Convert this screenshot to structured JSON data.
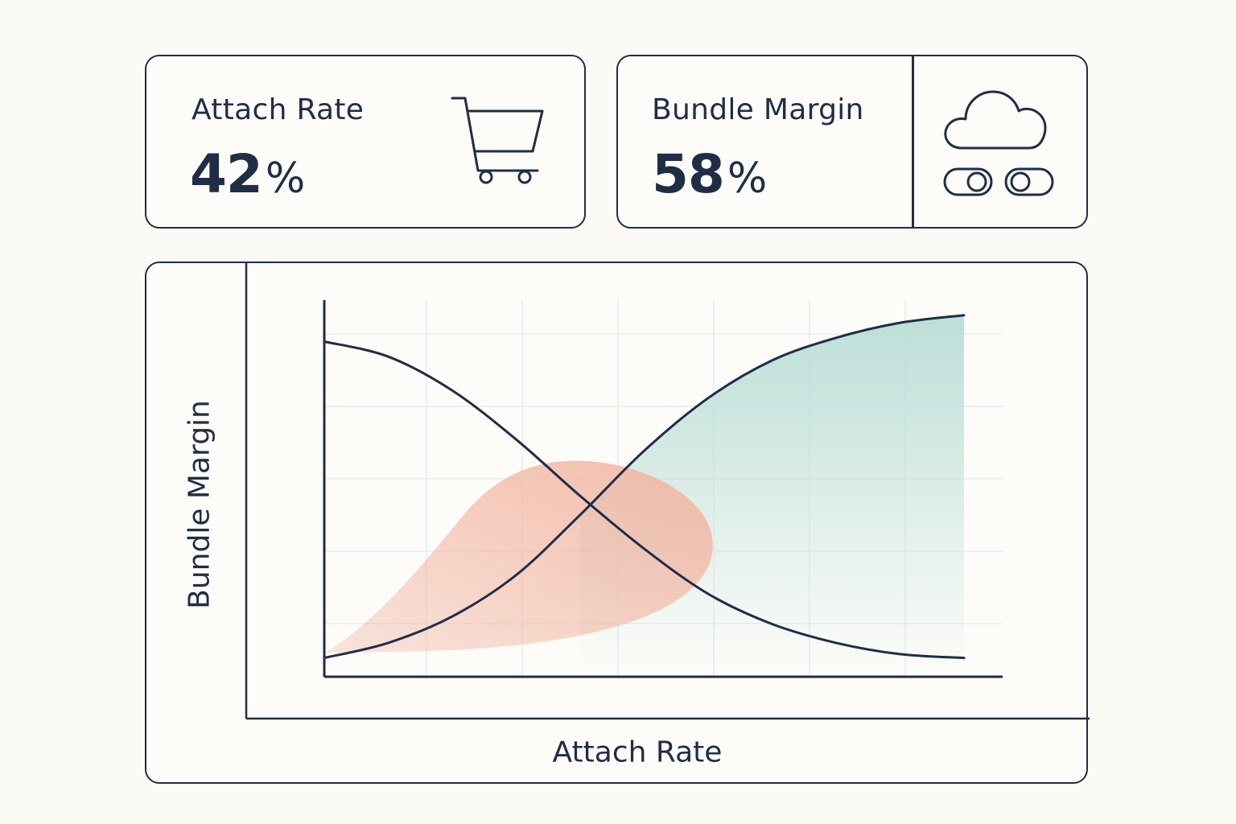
{
  "kpis": {
    "attach_rate": {
      "label": "Attach Rate",
      "value": "42",
      "unit": "%",
      "icon": "shopping-cart-icon"
    },
    "bundle_margin": {
      "label": "Bundle Margin",
      "value": "58",
      "unit": "%",
      "icons": [
        "cloud-icon",
        "toggle-icon",
        "toggle-icon"
      ]
    }
  },
  "colors": {
    "ink": "#1f2d47",
    "teal_fill": "#b9ddd6",
    "salmon_fill": "#f2b5a1",
    "grid": "#e6ecf4",
    "background": "#fbfaf5"
  },
  "chart_data": {
    "type": "line",
    "xlabel": "Attach Rate",
    "ylabel": "Bundle Margin",
    "xlim": [
      0,
      1
    ],
    "ylim": [
      0,
      1
    ],
    "grid": true,
    "series": [
      {
        "x": [
          0,
          0.1,
          0.2,
          0.3,
          0.4,
          0.5,
          0.6,
          0.7,
          0.8,
          0.9,
          1.0
        ],
        "values": [
          0.05,
          0.09,
          0.16,
          0.27,
          0.43,
          0.6,
          0.74,
          0.84,
          0.9,
          0.94,
          0.96
        ]
      },
      {
        "x": [
          0,
          0.1,
          0.2,
          0.3,
          0.4,
          0.5,
          0.6,
          0.7,
          0.8,
          0.9,
          1.0
        ],
        "values": [
          0.89,
          0.85,
          0.76,
          0.63,
          0.48,
          0.34,
          0.22,
          0.14,
          0.09,
          0.06,
          0.05
        ]
      }
    ]
  }
}
